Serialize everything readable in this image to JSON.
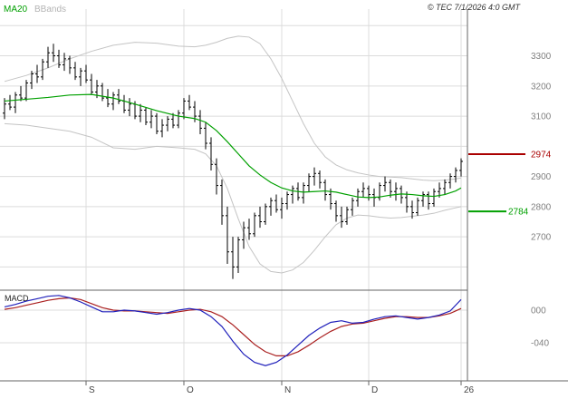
{
  "header": {
    "ma_label": "MA20",
    "bbands_label": "BBands",
    "copyright": "© TEC 7/1/2026 4:0 GMT"
  },
  "colors": {
    "ma_line": "#00a000",
    "bands_line": "#c4c4c4",
    "grid": "#dcdcdc",
    "candle": "#000000",
    "macd_line": "#2020bb",
    "signal_line": "#aa2020",
    "axis_text": "#808080",
    "month_text": "#444444",
    "border": "#666666",
    "level_resistance": "#aa0000",
    "level_support": "#00a000"
  },
  "chart_data": {
    "type": "candlestick",
    "title": "",
    "legend_position": "top-left",
    "grid": true,
    "x_axis": {
      "labels": [
        {
          "pos": 15,
          "label": "S"
        },
        {
          "pos": 33,
          "label": "O"
        },
        {
          "pos": 51,
          "label": "N"
        },
        {
          "pos": 67,
          "label": "D"
        },
        {
          "pos": 84,
          "label": "26"
        }
      ]
    },
    "main_panel": {
      "ylim": [
        2535,
        3455
      ],
      "yticks": [
        3300,
        3200,
        3100,
        2900,
        2800,
        2700
      ],
      "gridlines": [
        3400,
        3300,
        3200,
        3100,
        3000,
        2900,
        2800,
        2700,
        2600
      ],
      "levels": [
        {
          "name": "resistance",
          "value": 2974,
          "label": "2974",
          "color": "#aa0000",
          "line_x2": 580,
          "label_x": 586
        },
        {
          "name": "support",
          "value": 2784,
          "label": "2784",
          "color": "#00a000",
          "line_x2": 559,
          "label_x": 561
        }
      ],
      "candles": [
        [
          3110,
          3160,
          3090,
          3140
        ],
        [
          3140,
          3170,
          3120,
          3130
        ],
        [
          3130,
          3180,
          3110,
          3170
        ],
        [
          3170,
          3200,
          3150,
          3160
        ],
        [
          3160,
          3220,
          3150,
          3210
        ],
        [
          3210,
          3250,
          3190,
          3240
        ],
        [
          3240,
          3270,
          3210,
          3230
        ],
        [
          3230,
          3290,
          3220,
          3280
        ],
        [
          3280,
          3330,
          3260,
          3310
        ],
        [
          3310,
          3340,
          3280,
          3300
        ],
        [
          3300,
          3320,
          3260,
          3270
        ],
        [
          3270,
          3310,
          3250,
          3290
        ],
        [
          3290,
          3300,
          3240,
          3260
        ],
        [
          3260,
          3280,
          3220,
          3230
        ],
        [
          3230,
          3260,
          3200,
          3250
        ],
        [
          3250,
          3270,
          3210,
          3220
        ],
        [
          3220,
          3240,
          3170,
          3180
        ],
        [
          3180,
          3220,
          3160,
          3200
        ],
        [
          3200,
          3210,
          3150,
          3160
        ],
        [
          3160,
          3190,
          3130,
          3140
        ],
        [
          3140,
          3180,
          3120,
          3170
        ],
        [
          3170,
          3190,
          3140,
          3150
        ],
        [
          3150,
          3170,
          3110,
          3120
        ],
        [
          3120,
          3160,
          3100,
          3140
        ],
        [
          3140,
          3150,
          3090,
          3100
        ],
        [
          3100,
          3140,
          3080,
          3120
        ],
        [
          3120,
          3130,
          3070,
          3080
        ],
        [
          3080,
          3120,
          3060,
          3100
        ],
        [
          3100,
          3110,
          3040,
          3050
        ],
        [
          3050,
          3090,
          3030,
          3070
        ],
        [
          3070,
          3100,
          3050,
          3090
        ],
        [
          3090,
          3110,
          3060,
          3070
        ],
        [
          3070,
          3120,
          3060,
          3110
        ],
        [
          3110,
          3160,
          3090,
          3150
        ],
        [
          3150,
          3170,
          3120,
          3130
        ],
        [
          3130,
          3150,
          3080,
          3100
        ],
        [
          3100,
          3120,
          3040,
          3060
        ],
        [
          3060,
          3080,
          2990,
          3010
        ],
        [
          3010,
          3030,
          2920,
          2940
        ],
        [
          2940,
          2960,
          2840,
          2870
        ],
        [
          2870,
          2890,
          2740,
          2770
        ],
        [
          2770,
          2800,
          2610,
          2650
        ],
        [
          2650,
          2700,
          2560,
          2600
        ],
        [
          2600,
          2700,
          2580,
          2690
        ],
        [
          2690,
          2750,
          2660,
          2730
        ],
        [
          2730,
          2760,
          2690,
          2710
        ],
        [
          2710,
          2780,
          2700,
          2770
        ],
        [
          2770,
          2800,
          2730,
          2750
        ],
        [
          2750,
          2810,
          2740,
          2800
        ],
        [
          2800,
          2830,
          2770,
          2820
        ],
        [
          2820,
          2840,
          2780,
          2790
        ],
        [
          2790,
          2830,
          2760,
          2810
        ],
        [
          2810,
          2850,
          2790,
          2840
        ],
        [
          2840,
          2870,
          2810,
          2860
        ],
        [
          2860,
          2880,
          2820,
          2830
        ],
        [
          2830,
          2880,
          2810,
          2870
        ],
        [
          2870,
          2910,
          2850,
          2900
        ],
        [
          2900,
          2930,
          2870,
          2910
        ],
        [
          2910,
          2920,
          2860,
          2880
        ],
        [
          2880,
          2890,
          2820,
          2840
        ],
        [
          2840,
          2860,
          2790,
          2810
        ],
        [
          2810,
          2820,
          2750,
          2770
        ],
        [
          2770,
          2800,
          2730,
          2750
        ],
        [
          2750,
          2800,
          2740,
          2790
        ],
        [
          2790,
          2830,
          2770,
          2820
        ],
        [
          2820,
          2860,
          2800,
          2850
        ],
        [
          2850,
          2880,
          2830,
          2860
        ],
        [
          2860,
          2870,
          2820,
          2840
        ],
        [
          2840,
          2860,
          2800,
          2830
        ],
        [
          2830,
          2880,
          2820,
          2870
        ],
        [
          2870,
          2900,
          2850,
          2880
        ],
        [
          2880,
          2890,
          2830,
          2850
        ],
        [
          2850,
          2880,
          2820,
          2860
        ],
        [
          2860,
          2870,
          2810,
          2830
        ],
        [
          2830,
          2850,
          2780,
          2800
        ],
        [
          2800,
          2820,
          2760,
          2780
        ],
        [
          2780,
          2830,
          2770,
          2820
        ],
        [
          2820,
          2850,
          2800,
          2840
        ],
        [
          2840,
          2850,
          2790,
          2810
        ],
        [
          2810,
          2860,
          2800,
          2850
        ],
        [
          2850,
          2880,
          2830,
          2860
        ],
        [
          2860,
          2890,
          2840,
          2880
        ],
        [
          2880,
          2910,
          2860,
          2900
        ],
        [
          2900,
          2930,
          2880,
          2920
        ],
        [
          2920,
          2960,
          2900,
          2950
        ]
      ],
      "ma20": [
        [
          0,
          3150
        ],
        [
          4,
          3156
        ],
        [
          8,
          3162
        ],
        [
          12,
          3170
        ],
        [
          16,
          3172
        ],
        [
          20,
          3160
        ],
        [
          24,
          3140
        ],
        [
          28,
          3118
        ],
        [
          32,
          3100
        ],
        [
          35,
          3092
        ],
        [
          37,
          3080
        ],
        [
          39,
          3052
        ],
        [
          41,
          3015
        ],
        [
          43,
          2975
        ],
        [
          45,
          2935
        ],
        [
          47,
          2905
        ],
        [
          49,
          2880
        ],
        [
          51,
          2862
        ],
        [
          53,
          2852
        ],
        [
          55,
          2848
        ],
        [
          57,
          2850
        ],
        [
          59,
          2852
        ],
        [
          61,
          2848
        ],
        [
          63,
          2840
        ],
        [
          65,
          2832
        ],
        [
          67,
          2830
        ],
        [
          69,
          2832
        ],
        [
          71,
          2838
        ],
        [
          73,
          2842
        ],
        [
          75,
          2840
        ],
        [
          77,
          2836
        ],
        [
          79,
          2834
        ],
        [
          81,
          2840
        ],
        [
          83,
          2852
        ],
        [
          84,
          2862
        ]
      ],
      "bb_upper": [
        [
          0,
          3215
        ],
        [
          4,
          3235
        ],
        [
          8,
          3260
        ],
        [
          12,
          3290
        ],
        [
          16,
          3315
        ],
        [
          20,
          3335
        ],
        [
          24,
          3345
        ],
        [
          28,
          3342
        ],
        [
          32,
          3332
        ],
        [
          35,
          3330
        ],
        [
          37,
          3335
        ],
        [
          39,
          3345
        ],
        [
          41,
          3358
        ],
        [
          43,
          3365
        ],
        [
          45,
          3362
        ],
        [
          47,
          3340
        ],
        [
          49,
          3290
        ],
        [
          51,
          3225
        ],
        [
          53,
          3150
        ],
        [
          55,
          3075
        ],
        [
          57,
          3010
        ],
        [
          59,
          2965
        ],
        [
          61,
          2938
        ],
        [
          63,
          2922
        ],
        [
          65,
          2912
        ],
        [
          67,
          2905
        ],
        [
          69,
          2900
        ],
        [
          71,
          2898
        ],
        [
          73,
          2896
        ],
        [
          75,
          2892
        ],
        [
          77,
          2888
        ],
        [
          79,
          2886
        ],
        [
          81,
          2888
        ],
        [
          83,
          2892
        ],
        [
          84,
          2895
        ]
      ],
      "bb_lower": [
        [
          0,
          3075
        ],
        [
          4,
          3070
        ],
        [
          8,
          3060
        ],
        [
          12,
          3050
        ],
        [
          16,
          3030
        ],
        [
          20,
          2995
        ],
        [
          24,
          2990
        ],
        [
          28,
          3000
        ],
        [
          32,
          2995
        ],
        [
          35,
          2990
        ],
        [
          37,
          2975
        ],
        [
          39,
          2935
        ],
        [
          41,
          2860
        ],
        [
          43,
          2760
        ],
        [
          45,
          2668
        ],
        [
          47,
          2610
        ],
        [
          49,
          2585
        ],
        [
          51,
          2580
        ],
        [
          53,
          2590
        ],
        [
          55,
          2615
        ],
        [
          57,
          2655
        ],
        [
          59,
          2700
        ],
        [
          61,
          2740
        ],
        [
          63,
          2762
        ],
        [
          65,
          2772
        ],
        [
          67,
          2770
        ],
        [
          69,
          2765
        ],
        [
          71,
          2762
        ],
        [
          73,
          2764
        ],
        [
          75,
          2768
        ],
        [
          77,
          2772
        ],
        [
          79,
          2778
        ],
        [
          81,
          2788
        ],
        [
          83,
          2796
        ],
        [
          84,
          2800
        ]
      ]
    },
    "macd_panel": {
      "label": "MACD",
      "ylim": [
        -84,
        22
      ],
      "yticks": [
        {
          "value": 0,
          "label": "000"
        },
        {
          "value": -40,
          "label": "-040"
        }
      ],
      "macd": [
        [
          0,
          4
        ],
        [
          2,
          7
        ],
        [
          4,
          11
        ],
        [
          6,
          14
        ],
        [
          8,
          17
        ],
        [
          10,
          18
        ],
        [
          12,
          15
        ],
        [
          14,
          10
        ],
        [
          16,
          4
        ],
        [
          18,
          -2
        ],
        [
          20,
          -2
        ],
        [
          22,
          0
        ],
        [
          24,
          -1
        ],
        [
          26,
          -3
        ],
        [
          28,
          -5
        ],
        [
          30,
          -3
        ],
        [
          32,
          0
        ],
        [
          34,
          2
        ],
        [
          36,
          0
        ],
        [
          38,
          -8
        ],
        [
          40,
          -20
        ],
        [
          42,
          -38
        ],
        [
          44,
          -54
        ],
        [
          46,
          -64
        ],
        [
          48,
          -68
        ],
        [
          50,
          -64
        ],
        [
          52,
          -55
        ],
        [
          54,
          -43
        ],
        [
          56,
          -31
        ],
        [
          58,
          -22
        ],
        [
          60,
          -15
        ],
        [
          62,
          -13
        ],
        [
          64,
          -16
        ],
        [
          66,
          -15
        ],
        [
          68,
          -11
        ],
        [
          70,
          -8
        ],
        [
          72,
          -7
        ],
        [
          74,
          -9
        ],
        [
          76,
          -11
        ],
        [
          78,
          -9
        ],
        [
          80,
          -6
        ],
        [
          82,
          -1
        ],
        [
          84,
          13
        ]
      ],
      "signal": [
        [
          0,
          1
        ],
        [
          2,
          3
        ],
        [
          4,
          6
        ],
        [
          6,
          9
        ],
        [
          8,
          12
        ],
        [
          10,
          14
        ],
        [
          12,
          15
        ],
        [
          14,
          13
        ],
        [
          16,
          8
        ],
        [
          18,
          3
        ],
        [
          20,
          0
        ],
        [
          22,
          -1
        ],
        [
          24,
          -1
        ],
        [
          26,
          -2
        ],
        [
          28,
          -3
        ],
        [
          30,
          -4
        ],
        [
          32,
          -2
        ],
        [
          34,
          0
        ],
        [
          36,
          1
        ],
        [
          38,
          -2
        ],
        [
          40,
          -8
        ],
        [
          42,
          -18
        ],
        [
          44,
          -30
        ],
        [
          46,
          -42
        ],
        [
          48,
          -51
        ],
        [
          50,
          -56
        ],
        [
          52,
          -56
        ],
        [
          54,
          -51
        ],
        [
          56,
          -43
        ],
        [
          58,
          -34
        ],
        [
          60,
          -26
        ],
        [
          62,
          -20
        ],
        [
          64,
          -17
        ],
        [
          66,
          -16
        ],
        [
          68,
          -13
        ],
        [
          70,
          -10
        ],
        [
          72,
          -8
        ],
        [
          74,
          -8
        ],
        [
          76,
          -9
        ],
        [
          78,
          -9
        ],
        [
          80,
          -7
        ],
        [
          82,
          -4
        ],
        [
          84,
          2
        ]
      ]
    }
  }
}
